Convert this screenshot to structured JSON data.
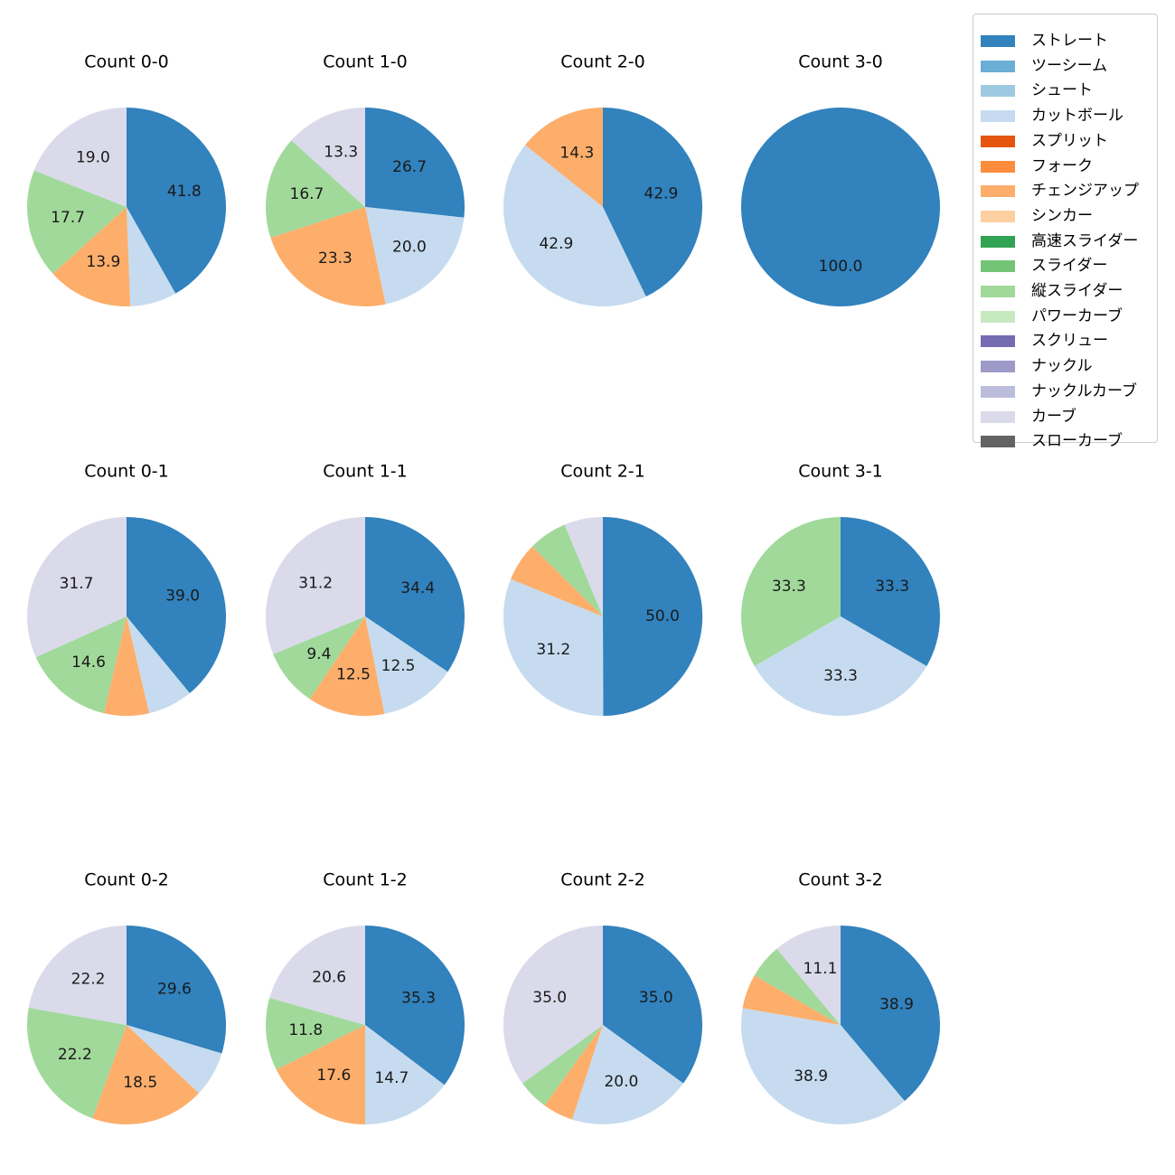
{
  "chart_data": {
    "type": "pie",
    "legend_placement": "top-right",
    "pitch_types": [
      {
        "name": "ストレート",
        "color": "#3182bd"
      },
      {
        "name": "ツーシーム",
        "color": "#6baed6"
      },
      {
        "name": "シュート",
        "color": "#9ecae1"
      },
      {
        "name": "カットボール",
        "color": "#c6dbef"
      },
      {
        "name": "スプリット",
        "color": "#e6550d"
      },
      {
        "name": "フォーク",
        "color": "#fd8d3c"
      },
      {
        "name": "チェンジアップ",
        "color": "#fdae6b"
      },
      {
        "name": "シンカー",
        "color": "#fdd0a2"
      },
      {
        "name": "高速スライダー",
        "color": "#31a354"
      },
      {
        "name": "スライダー",
        "color": "#74c476"
      },
      {
        "name": "縦スライダー",
        "color": "#a1d99b"
      },
      {
        "name": "パワーカーブ",
        "color": "#c7e9c0"
      },
      {
        "name": "スクリュー",
        "color": "#756bb1"
      },
      {
        "name": "ナックル",
        "color": "#9e9ac8"
      },
      {
        "name": "ナックルカーブ",
        "color": "#bcbddc"
      },
      {
        "name": "カーブ",
        "color": "#dadaeb"
      },
      {
        "name": "スローカーブ",
        "color": "#636363"
      }
    ],
    "charts": [
      {
        "title": "Count 0-0",
        "slices": [
          {
            "pitch": "ストレート",
            "value": 41.8,
            "label": "41.8"
          },
          {
            "pitch": "カットボール",
            "value": 7.6,
            "label": ""
          },
          {
            "pitch": "チェンジアップ",
            "value": 13.9,
            "label": "13.9"
          },
          {
            "pitch": "縦スライダー",
            "value": 17.7,
            "label": "17.7"
          },
          {
            "pitch": "カーブ",
            "value": 19.0,
            "label": "19.0"
          }
        ]
      },
      {
        "title": "Count 1-0",
        "slices": [
          {
            "pitch": "ストレート",
            "value": 26.7,
            "label": "26.7"
          },
          {
            "pitch": "カットボール",
            "value": 20.0,
            "label": "20.0"
          },
          {
            "pitch": "チェンジアップ",
            "value": 23.3,
            "label": "23.3"
          },
          {
            "pitch": "縦スライダー",
            "value": 16.7,
            "label": "16.7"
          },
          {
            "pitch": "カーブ",
            "value": 13.3,
            "label": "13.3"
          }
        ]
      },
      {
        "title": "Count 2-0",
        "slices": [
          {
            "pitch": "ストレート",
            "value": 42.9,
            "label": "42.9"
          },
          {
            "pitch": "カットボール",
            "value": 42.9,
            "label": "42.9"
          },
          {
            "pitch": "チェンジアップ",
            "value": 14.3,
            "label": "14.3"
          }
        ]
      },
      {
        "title": "Count 3-0",
        "slices": [
          {
            "pitch": "ストレート",
            "value": 100.0,
            "label": "100.0"
          }
        ]
      },
      {
        "title": "Count 0-1",
        "slices": [
          {
            "pitch": "ストレート",
            "value": 39.0,
            "label": "39.0"
          },
          {
            "pitch": "カットボール",
            "value": 7.3,
            "label": ""
          },
          {
            "pitch": "チェンジアップ",
            "value": 7.3,
            "label": ""
          },
          {
            "pitch": "縦スライダー",
            "value": 14.6,
            "label": "14.6"
          },
          {
            "pitch": "カーブ",
            "value": 31.7,
            "label": "31.7"
          }
        ]
      },
      {
        "title": "Count 1-1",
        "slices": [
          {
            "pitch": "ストレート",
            "value": 34.4,
            "label": "34.4"
          },
          {
            "pitch": "カットボール",
            "value": 12.5,
            "label": "12.5"
          },
          {
            "pitch": "チェンジアップ",
            "value": 12.5,
            "label": "12.5"
          },
          {
            "pitch": "縦スライダー",
            "value": 9.4,
            "label": "9.4"
          },
          {
            "pitch": "カーブ",
            "value": 31.2,
            "label": "31.2"
          }
        ]
      },
      {
        "title": "Count 2-1",
        "slices": [
          {
            "pitch": "ストレート",
            "value": 50.0,
            "label": "50.0"
          },
          {
            "pitch": "カットボール",
            "value": 31.2,
            "label": "31.2"
          },
          {
            "pitch": "チェンジアップ",
            "value": 6.3,
            "label": ""
          },
          {
            "pitch": "縦スライダー",
            "value": 6.3,
            "label": ""
          },
          {
            "pitch": "カーブ",
            "value": 6.3,
            "label": ""
          }
        ]
      },
      {
        "title": "Count 3-1",
        "slices": [
          {
            "pitch": "ストレート",
            "value": 33.3,
            "label": "33.3"
          },
          {
            "pitch": "カットボール",
            "value": 33.3,
            "label": "33.3"
          },
          {
            "pitch": "縦スライダー",
            "value": 33.3,
            "label": "33.3"
          }
        ]
      },
      {
        "title": "Count 0-2",
        "slices": [
          {
            "pitch": "ストレート",
            "value": 29.6,
            "label": "29.6"
          },
          {
            "pitch": "カットボール",
            "value": 7.4,
            "label": ""
          },
          {
            "pitch": "チェンジアップ",
            "value": 18.5,
            "label": "18.5"
          },
          {
            "pitch": "縦スライダー",
            "value": 22.2,
            "label": "22.2"
          },
          {
            "pitch": "カーブ",
            "value": 22.2,
            "label": "22.2"
          }
        ]
      },
      {
        "title": "Count 1-2",
        "slices": [
          {
            "pitch": "ストレート",
            "value": 35.3,
            "label": "35.3"
          },
          {
            "pitch": "カットボール",
            "value": 14.7,
            "label": "14.7"
          },
          {
            "pitch": "チェンジアップ",
            "value": 17.6,
            "label": "17.6"
          },
          {
            "pitch": "縦スライダー",
            "value": 11.8,
            "label": "11.8"
          },
          {
            "pitch": "カーブ",
            "value": 20.6,
            "label": "20.6"
          }
        ]
      },
      {
        "title": "Count 2-2",
        "slices": [
          {
            "pitch": "ストレート",
            "value": 35.0,
            "label": "35.0"
          },
          {
            "pitch": "カットボール",
            "value": 20.0,
            "label": "20.0"
          },
          {
            "pitch": "チェンジアップ",
            "value": 5.0,
            "label": ""
          },
          {
            "pitch": "縦スライダー",
            "value": 5.0,
            "label": ""
          },
          {
            "pitch": "カーブ",
            "value": 35.0,
            "label": "35.0"
          }
        ]
      },
      {
        "title": "Count 3-2",
        "slices": [
          {
            "pitch": "ストレート",
            "value": 38.9,
            "label": "38.9"
          },
          {
            "pitch": "カットボール",
            "value": 38.9,
            "label": "38.9"
          },
          {
            "pitch": "チェンジアップ",
            "value": 5.6,
            "label": ""
          },
          {
            "pitch": "縦スライダー",
            "value": 5.6,
            "label": ""
          },
          {
            "pitch": "カーブ",
            "value": 11.1,
            "label": "11.1"
          }
        ]
      }
    ]
  }
}
